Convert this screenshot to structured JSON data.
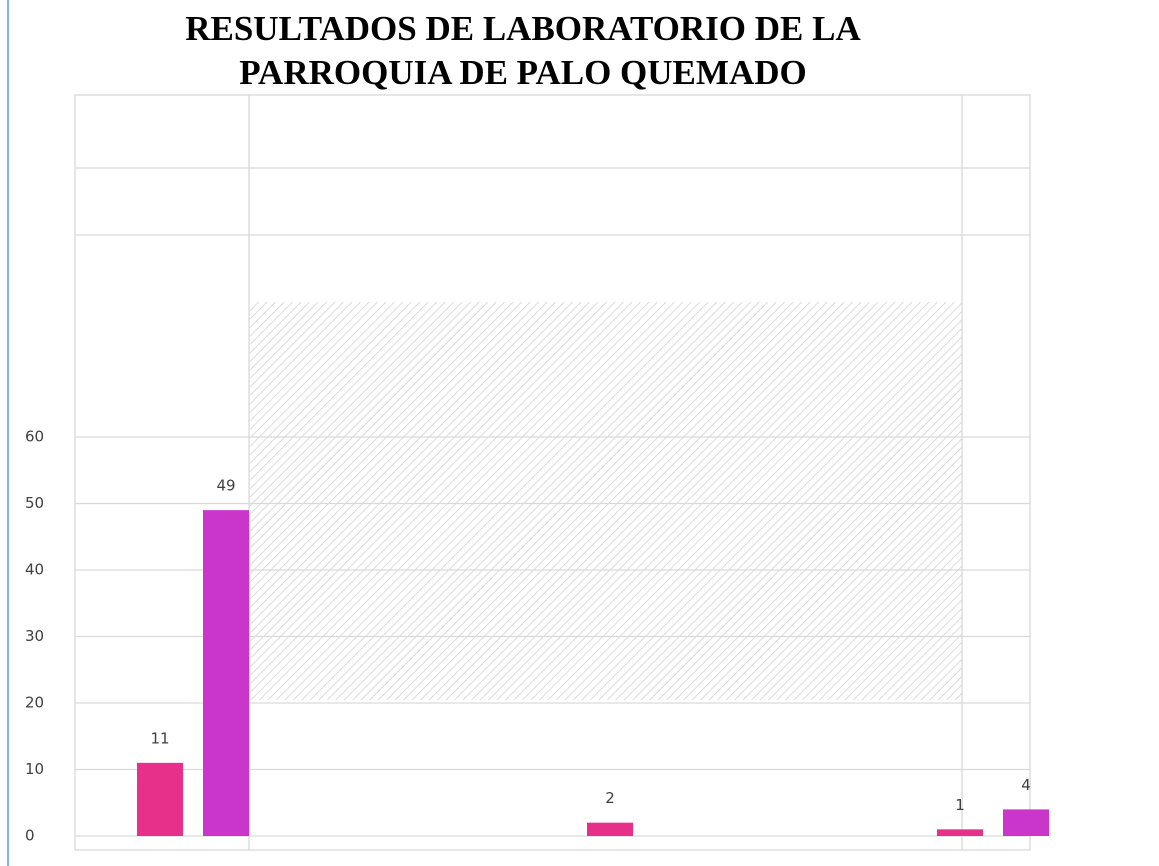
{
  "chart_data": {
    "type": "bar",
    "title": [
      "RESULTADOS DE LABORATORIO DE LA",
      "PARROQUIA DE PALO QUEMADO"
    ],
    "categories": [
      null,
      null,
      null
    ],
    "series": [
      {
        "color": "#e6308a",
        "values": [
          11,
          2,
          1
        ]
      },
      {
        "color": "#c936c9",
        "values": [
          49,
          null,
          4
        ]
      }
    ],
    "ylim": [
      0,
      60
    ],
    "yticks": [
      0,
      10,
      20,
      30,
      40,
      50,
      60
    ],
    "grid": true
  }
}
